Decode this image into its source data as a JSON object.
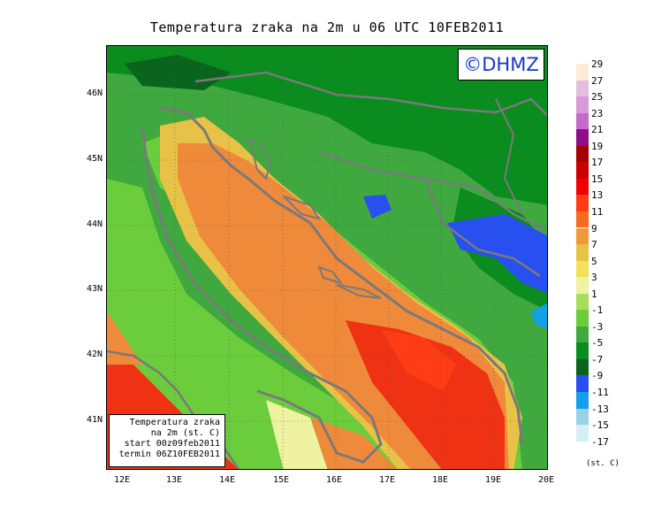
{
  "title": "Temperatura zraka na 2m u 06 UTC 10FEB2011",
  "logo_text": "©DHMZ",
  "info_box": {
    "line1": "Temperatura zraka",
    "line2": "na 2m (st. C)",
    "line3": "start 00z09feb2011",
    "line4": "termin 06Z10FEB2011"
  },
  "lat_labels": [
    "46N",
    "45N",
    "44N",
    "43N",
    "42N",
    "41N"
  ],
  "lon_labels": [
    "12E",
    "13E",
    "14E",
    "15E",
    "16E",
    "17E",
    "18E",
    "19E",
    "20E"
  ],
  "legend": {
    "unit": "(st. C)",
    "labels": [
      "29",
      "27",
      "25",
      "23",
      "21",
      "19",
      "17",
      "15",
      "13",
      "11",
      "9",
      "7",
      "5",
      "3",
      "1",
      "-1",
      "-3",
      "-5",
      "-7",
      "-9",
      "-11",
      "-13",
      "-15",
      "-17"
    ],
    "colors": [
      "#fdebd9",
      "#e2bde0",
      "#d99ad9",
      "#c46ac8",
      "#8c0c8c",
      "#a30000",
      "#c80000",
      "#f00000",
      "#ff3c14",
      "#f86a1e",
      "#ef9a38",
      "#e8c246",
      "#f3e15c",
      "#eff2a0",
      "#a8dc5a",
      "#6bcc3c",
      "#3caa3c",
      "#0a8c1e",
      "#0a641e",
      "#2850f0",
      "#14a0e6",
      "#98d2e6",
      "#d4f0f4",
      "#ffffff"
    ]
  },
  "colors": {
    "land_base": "#3fa83f",
    "sea_warm": "#ef8a3a",
    "sea_hot": "#f03214",
    "coast_line": "#7a7a7a",
    "cold": "#2850f0"
  }
}
